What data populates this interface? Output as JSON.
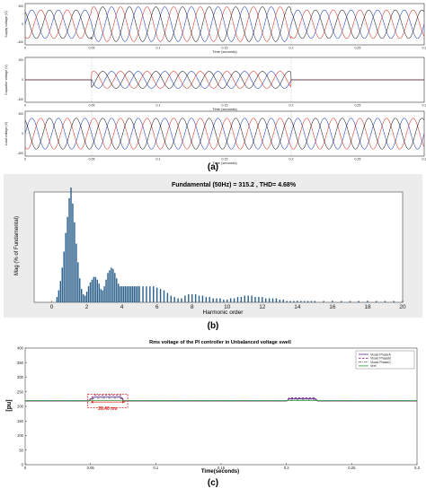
{
  "panel_labels": [
    "(a)",
    "(b)",
    "(c)"
  ],
  "chart_data": [
    {
      "type": "line",
      "panel": "a",
      "sub": [
        {
          "ylabel": "Supply voltage (V)",
          "xlabel": "Time (seconds)",
          "xlim": [
            0,
            0.3
          ],
          "yticks": [
            "400",
            "0",
            "-400"
          ],
          "xticks": [
            "0",
            "0.05",
            "0.1",
            "0.15",
            "0.2",
            "0.25",
            "0.3"
          ],
          "series": [
            {
              "color": "#1f3fbf",
              "amplitude": [
                1,
                1.22,
                1
              ],
              "phase_deg": 0
            },
            {
              "color": "#d9342b",
              "amplitude": [
                1,
                1.22,
                1
              ],
              "phase_deg": -120
            },
            {
              "color": "#222222",
              "amplitude": [
                1,
                1.22,
                1
              ],
              "phase_deg": 120
            }
          ],
          "segments_s": [
            0.05,
            0.2
          ]
        },
        {
          "ylabel": "Capacitor voltage (V)",
          "xlabel": "Time (seconds)",
          "xlim": [
            0,
            0.3
          ],
          "yticks": [
            "100",
            "0",
            "-100"
          ],
          "xticks": [
            "0",
            "0.05",
            "0.1",
            "0.15",
            "0.2",
            "0.25",
            "0.3"
          ],
          "series": [
            {
              "color": "#1f3fbf",
              "amplitude": [
                0,
                0.55,
                0
              ],
              "phase_deg": 0
            },
            {
              "color": "#d9342b",
              "amplitude": [
                0,
                0.55,
                0
              ],
              "phase_deg": -120
            },
            {
              "color": "#222222",
              "amplitude": [
                0,
                0.55,
                0
              ],
              "phase_deg": 120
            }
          ],
          "segments_s": [
            0.05,
            0.2
          ]
        },
        {
          "ylabel": "Load voltage (V)",
          "xlabel": "Time (seconds)",
          "xlim": [
            0,
            0.3
          ],
          "yticks": [
            "400",
            "0",
            "-400"
          ],
          "xticks": [
            "0",
            "0.05",
            "0.1",
            "0.15",
            "0.2",
            "0.25",
            "0.3"
          ],
          "series": [
            {
              "color": "#1f3fbf",
              "amplitude": [
                1,
                1,
                1
              ],
              "phase_deg": 0
            },
            {
              "color": "#d9342b",
              "amplitude": [
                1,
                1,
                1
              ],
              "phase_deg": -120
            },
            {
              "color": "#222222",
              "amplitude": [
                1,
                1,
                1
              ],
              "phase_deg": 120
            }
          ],
          "segments_s": [
            0.05,
            0.2
          ]
        }
      ]
    },
    {
      "type": "bar",
      "panel": "b",
      "title": "Fundamental (50Hz) = 315.2 , THD= 4.68%",
      "xlabel": "Harmonic order",
      "ylabel": "Mag (% of Fundamental)",
      "xlim": [
        -1,
        20
      ],
      "xticks": [
        0,
        2,
        4,
        6,
        8,
        10,
        12,
        14,
        16,
        18,
        20
      ],
      "bar_color": "#2a5f8a",
      "x": [
        0.3,
        0.4,
        0.5,
        0.6,
        0.7,
        0.8,
        0.9,
        1.0,
        1.1,
        1.2,
        1.3,
        1.4,
        1.5,
        1.6,
        1.7,
        1.8,
        1.9,
        2.0,
        2.1,
        2.2,
        2.3,
        2.4,
        2.5,
        2.6,
        2.7,
        2.8,
        2.9,
        3.0,
        3.1,
        3.2,
        3.3,
        3.4,
        3.5,
        3.6,
        3.7,
        3.8,
        3.9,
        4.0,
        4.1,
        4.2,
        4.3,
        4.4,
        4.5,
        4.6,
        4.7,
        4.8,
        4.9,
        5.0,
        5.2,
        5.4,
        5.6,
        5.8,
        6.0,
        6.2,
        6.4,
        6.6,
        6.8,
        7.0,
        7.2,
        7.4,
        7.6,
        7.8,
        8.0,
        8.2,
        8.4,
        8.6,
        8.8,
        9.0,
        9.2,
        9.4,
        9.6,
        9.8,
        10.0,
        10.2,
        10.4,
        10.6,
        10.8,
        11.0,
        11.2,
        11.4,
        11.6,
        11.8,
        12.0,
        12.2,
        12.4,
        12.6,
        12.8,
        13.0,
        13.2,
        13.4,
        13.6,
        13.8,
        14.0,
        14.2,
        14.4,
        14.6,
        14.8,
        15.0,
        15.5,
        16.0,
        16.5,
        17.0,
        17.5,
        18.0,
        18.5,
        19.0,
        19.5,
        20.0
      ],
      "values": [
        4,
        9,
        16,
        26,
        38,
        52,
        64,
        78,
        86,
        74,
        60,
        44,
        30,
        18,
        10,
        6,
        5,
        8,
        12,
        15,
        17,
        19,
        19,
        17,
        14,
        10,
        9,
        12,
        17,
        22,
        24,
        26,
        25,
        22,
        18,
        14,
        12,
        12,
        12,
        12,
        12,
        12,
        12,
        12,
        12,
        12,
        12,
        12,
        12,
        12,
        12,
        12,
        11,
        10,
        9,
        7,
        5,
        4,
        3,
        3,
        5,
        6,
        6,
        6,
        5,
        5,
        4,
        4,
        3,
        3,
        3,
        2,
        2,
        3,
        3,
        4,
        4,
        5,
        5,
        5,
        4,
        4,
        4,
        3,
        3,
        3,
        3,
        2,
        2,
        1,
        1,
        1,
        1,
        1,
        1,
        1,
        1,
        1,
        1,
        1,
        1,
        1,
        1,
        1,
        1,
        1,
        1,
        1
      ],
      "bar_width": 0.06
    },
    {
      "type": "line",
      "panel": "c",
      "title": "Rms voltage of the PI controller in Unbalanced voltage swell",
      "xlabel": "Time(seconds)",
      "ylabel": "[pu]",
      "xlim": [
        0,
        0.3
      ],
      "ylim": [
        0,
        400
      ],
      "yticks": [
        0,
        50,
        100,
        150,
        200,
        250,
        300,
        350,
        400
      ],
      "xticks": [
        "0",
        "0.05",
        "0.1",
        "0.15",
        "0.2",
        "0.25",
        "0.3"
      ],
      "legend": [
        "Vload PhaseA",
        "Vload PhaseB",
        "Vload PhaseC",
        "Vref"
      ],
      "legend_position": "top-right",
      "annotation": "26.40 ms",
      "series": [
        {
          "name": "Vload PhaseA",
          "color": "#5b2d90",
          "style": "solid",
          "x": [
            0,
            0.049,
            0.05,
            0.053,
            0.073,
            0.076,
            0.2,
            0.202,
            0.222,
            0.224,
            0.3
          ],
          "y": [
            218,
            218,
            225,
            232,
            232,
            218,
            218,
            226,
            226,
            218,
            218
          ]
        },
        {
          "name": "Vload PhaseB",
          "color": "#8a2a7a",
          "style": "dashed",
          "x": [
            0,
            0.049,
            0.05,
            0.053,
            0.073,
            0.076,
            0.2,
            0.202,
            0.222,
            0.224,
            0.3
          ],
          "y": [
            218,
            218,
            228,
            238,
            238,
            218,
            218,
            229,
            229,
            218,
            218
          ]
        },
        {
          "name": "Vload PhaseC",
          "color": "#555555",
          "style": "dashdot",
          "x": [
            0,
            0.049,
            0.05,
            0.053,
            0.073,
            0.076,
            0.2,
            0.202,
            0.222,
            0.224,
            0.3
          ],
          "y": [
            218,
            218,
            222,
            228,
            228,
            218,
            218,
            222,
            222,
            218,
            218
          ]
        },
        {
          "name": "Vref",
          "color": "#2e9a3a",
          "style": "solid",
          "x": [
            0,
            0.3
          ],
          "y": [
            220,
            220
          ]
        }
      ]
    }
  ]
}
